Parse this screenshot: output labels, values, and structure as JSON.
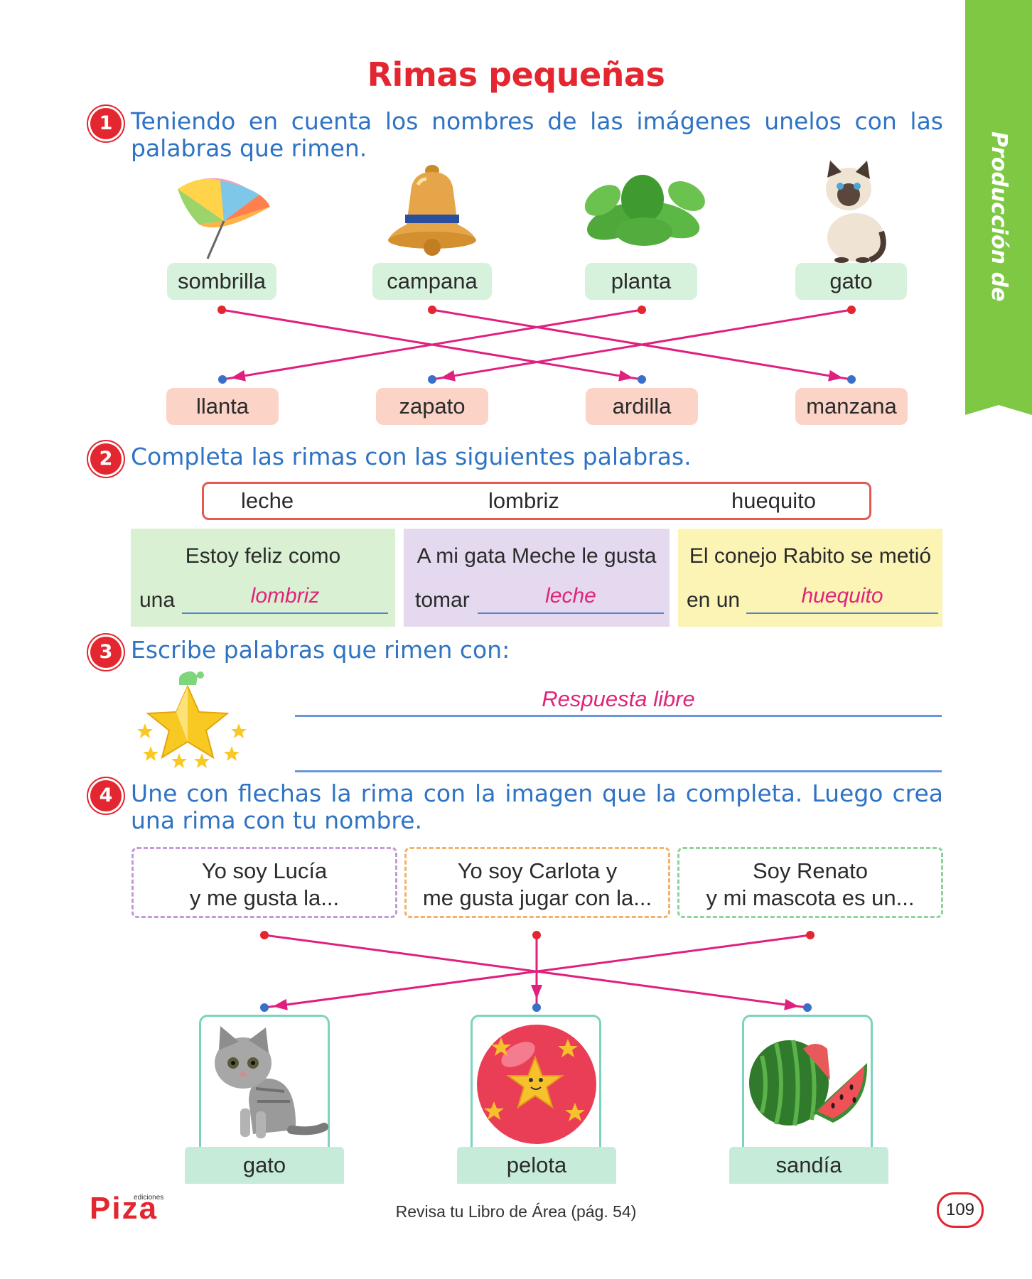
{
  "title": "Rimas pequeñas",
  "side_tab": "Producción de textos",
  "ex1": {
    "number": "1",
    "instruction": "Teniendo en cuenta los nombres de las imágenes unelos con las palabras que rimen.",
    "top_words": [
      "sombrilla",
      "campana",
      "planta",
      "gato"
    ],
    "bottom_words": [
      "llanta",
      "zapato",
      "ardilla",
      "manzana"
    ],
    "images": [
      "umbrella-icon",
      "bell-icon",
      "plant-icon",
      "cat-icon"
    ],
    "matches": [
      [
        0,
        2
      ],
      [
        1,
        3
      ],
      [
        2,
        0
      ],
      [
        3,
        1
      ]
    ]
  },
  "ex2": {
    "number": "2",
    "instruction": "Completa las rimas con las siguientes palabras.",
    "bank": [
      "leche",
      "lombriz",
      "huequito"
    ],
    "rhymes": [
      {
        "line1": "Estoy feliz como",
        "prefix": "una",
        "answer": "lombriz",
        "color": "#d9f1d2"
      },
      {
        "line1": "A mi gata Meche le gusta",
        "prefix": "tomar",
        "answer": "leche",
        "color": "#e4d9ee"
      },
      {
        "line1": "El conejo Rabito se metió",
        "prefix": "en un",
        "answer": "huequito",
        "color": "#fbf4b5"
      }
    ]
  },
  "ex3": {
    "number": "3",
    "instruction": "Escribe palabras que rimen con:",
    "image": "star-icon",
    "answer": "Respuesta libre"
  },
  "ex4": {
    "number": "4",
    "instruction": "Une con flechas la rima con la imagen que la completa. Luego crea una rima con tu nombre.",
    "rhymes": [
      {
        "l1": "Yo soy Lucía",
        "l2": "y me gusta la...",
        "color": "#c39ad6"
      },
      {
        "l1": "Yo soy Carlota y",
        "l2": "me gusta jugar con la...",
        "color": "#f5b06a"
      },
      {
        "l1": "Soy Renato",
        "l2": "y mi mascota es un...",
        "color": "#8fd39a"
      }
    ],
    "pictures": [
      "gato",
      "pelota",
      "sandía"
    ],
    "picture_icons": [
      "kitten-icon",
      "ball-icon",
      "watermelon-icon"
    ],
    "matches": [
      [
        0,
        2
      ],
      [
        1,
        1
      ],
      [
        2,
        0
      ]
    ]
  },
  "footer": {
    "review": "Revisa tu Libro de Área (pág. 54)",
    "page": "109",
    "logo": "Piza",
    "logo_sub": "ediciones"
  },
  "colors": {
    "accent": "#e3262f",
    "instruction": "#2f73c4",
    "arrow": "#e0207f",
    "answer": "#e0247a"
  }
}
